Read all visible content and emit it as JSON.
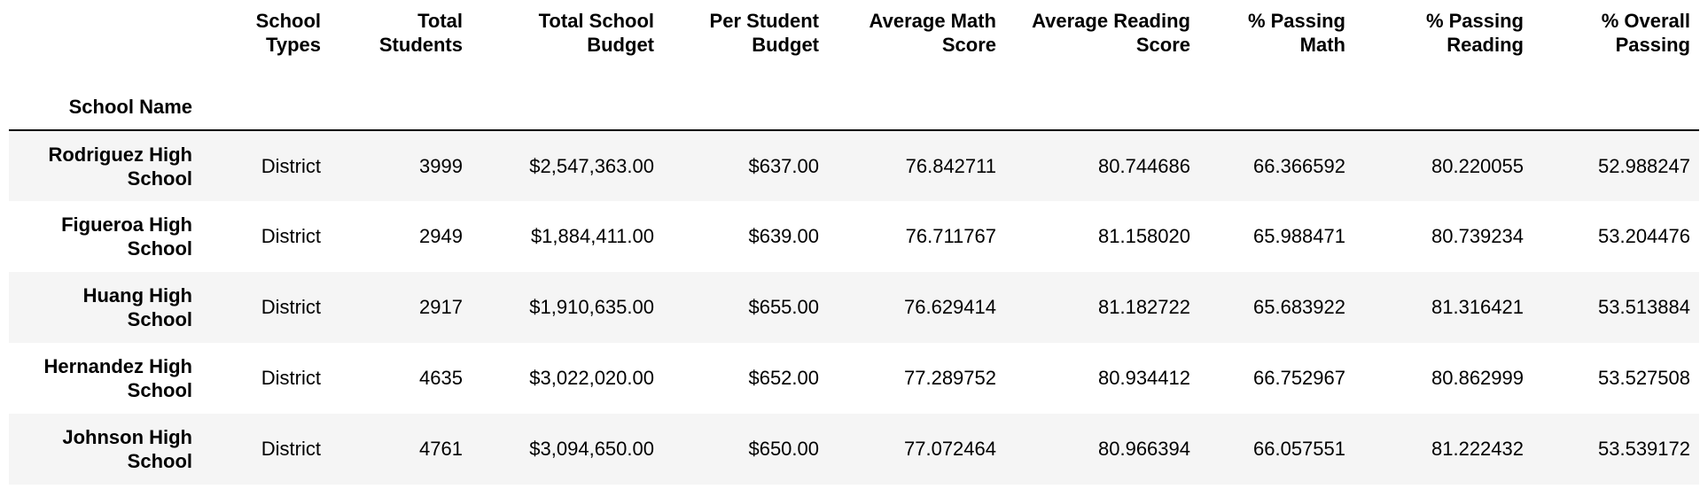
{
  "table": {
    "columns": [
      "School Types",
      "Total Students",
      "Total School Budget",
      "Per Student Budget",
      "Average Math Score",
      "Average Reading Score",
      "% Passing Math",
      "% Passing Reading",
      "% Overall Passing"
    ],
    "column_lines": [
      [
        "School",
        "Types"
      ],
      [
        "Total",
        "Students"
      ],
      [
        "Total School",
        "Budget"
      ],
      [
        "Per Student",
        "Budget"
      ],
      [
        "Average Math",
        "Score"
      ],
      [
        "Average Reading",
        "Score"
      ],
      [
        "% Passing",
        "Math"
      ],
      [
        "% Passing",
        "Reading"
      ],
      [
        "% Overall",
        "Passing"
      ]
    ],
    "index_name": "School Name",
    "rows": [
      {
        "name": "Rodriguez High School",
        "name_lines": [
          "Rodriguez High",
          "School"
        ],
        "values": [
          "District",
          "3999",
          "$2,547,363.00",
          "$637.00",
          "76.842711",
          "80.744686",
          "66.366592",
          "80.220055",
          "52.988247"
        ]
      },
      {
        "name": "Figueroa High School",
        "name_lines": [
          "Figueroa High",
          "School"
        ],
        "values": [
          "District",
          "2949",
          "$1,884,411.00",
          "$639.00",
          "76.711767",
          "81.158020",
          "65.988471",
          "80.739234",
          "53.204476"
        ]
      },
      {
        "name": "Huang High School",
        "name_lines": [
          "Huang High",
          "School"
        ],
        "values": [
          "District",
          "2917",
          "$1,910,635.00",
          "$655.00",
          "76.629414",
          "81.182722",
          "65.683922",
          "81.316421",
          "53.513884"
        ]
      },
      {
        "name": "Hernandez High School",
        "name_lines": [
          "Hernandez High",
          "School"
        ],
        "values": [
          "District",
          "4635",
          "$3,022,020.00",
          "$652.00",
          "77.289752",
          "80.934412",
          "66.752967",
          "80.862999",
          "53.527508"
        ]
      },
      {
        "name": "Johnson High School",
        "name_lines": [
          "Johnson High",
          "School"
        ],
        "values": [
          "District",
          "4761",
          "$3,094,650.00",
          "$650.00",
          "77.072464",
          "80.966394",
          "66.057551",
          "81.222432",
          "53.539172"
        ]
      }
    ]
  }
}
